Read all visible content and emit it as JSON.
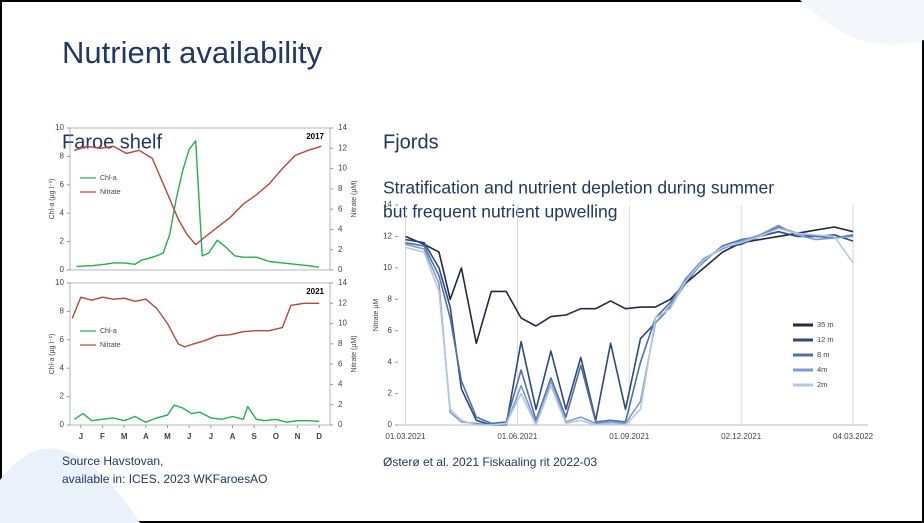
{
  "title": "Nutrient availability",
  "subtitles": [
    "Faroe shelf",
    "Fjords"
  ],
  "fjord_text": [
    "Stratification and nutrient depletion during summer",
    "but frequent nutrient upwelling"
  ],
  "sources": [
    "Source Havstovan,",
    "available in:  ICES. 2023 WKFaroesAO",
    "Østerø et al. 2021 Fiskaaling rit 2022-03"
  ],
  "chart_data": [
    {
      "type": "line",
      "annotation": "2017",
      "y_label": "Chl-a (µg l⁻¹)",
      "y2_label": "Nitrate (µM)",
      "xlim": [
        0,
        12
      ],
      "ylim": [
        0,
        10
      ],
      "yticks": [
        0,
        2,
        4,
        6,
        8,
        10
      ],
      "y2lim": [
        0,
        14
      ],
      "y2ticks": [
        0,
        2,
        4,
        6,
        8,
        10,
        12,
        14
      ],
      "grid": false,
      "series": [
        {
          "name": "Chl-a",
          "color": "#22b14c",
          "axis": "y",
          "x": [
            0.3,
            1,
            1.6,
            2,
            2.5,
            3,
            3.3,
            3.6,
            4,
            4.3,
            4.6,
            4.9,
            5.2,
            5.5,
            5.8,
            6.1,
            6.4,
            6.8,
            7.2,
            7.6,
            8,
            8.6,
            9.2,
            9.8,
            10.4,
            11,
            11.5
          ],
          "values": [
            0.25,
            0.3,
            0.4,
            0.5,
            0.5,
            0.4,
            0.7,
            0.8,
            1,
            1.2,
            2.5,
            5,
            7,
            8.5,
            9.1,
            1,
            1.2,
            2.1,
            1.6,
            1,
            0.9,
            0.9,
            0.6,
            0.5,
            0.4,
            0.3,
            0.2
          ]
        },
        {
          "name": "Nitrate",
          "color": "#b5473a",
          "axis": "y2",
          "x": [
            0.2,
            0.8,
            1.4,
            2,
            2.6,
            3.2,
            3.8,
            4.2,
            4.6,
            5,
            5.4,
            5.8,
            6.2,
            6.8,
            7.4,
            8,
            8.6,
            9.2,
            9.8,
            10.4,
            11,
            11.6
          ],
          "values": [
            11.8,
            12.2,
            12,
            12.2,
            11.5,
            11.8,
            11,
            9,
            7,
            5,
            3.5,
            2.5,
            3.2,
            4.2,
            5.2,
            6.5,
            7.4,
            8.5,
            10,
            11.3,
            11.8,
            12.2
          ]
        }
      ]
    },
    {
      "type": "line",
      "annotation": "2021",
      "y_label": "Chl-a (µg l⁻¹)",
      "y2_label": "Nitrate (µM)",
      "xlim": [
        0,
        12
      ],
      "xticks": [
        {
          "value": 0.5,
          "label": "J"
        },
        {
          "value": 1.5,
          "label": "F"
        },
        {
          "value": 2.5,
          "label": "M"
        },
        {
          "value": 3.5,
          "label": "A"
        },
        {
          "value": 4.5,
          "label": "M"
        },
        {
          "value": 5.5,
          "label": "J"
        },
        {
          "value": 6.5,
          "label": "J"
        },
        {
          "value": 7.5,
          "label": "A"
        },
        {
          "value": 8.5,
          "label": "S"
        },
        {
          "value": 9.5,
          "label": "O"
        },
        {
          "value": 10.5,
          "label": "N"
        },
        {
          "value": 11.5,
          "label": "D"
        }
      ],
      "ylim": [
        0,
        10
      ],
      "yticks": [
        0,
        2,
        4,
        6,
        8,
        10
      ],
      "y2lim": [
        0,
        14
      ],
      "y2ticks": [
        0,
        2,
        4,
        6,
        8,
        10,
        12,
        14
      ],
      "grid": false,
      "series": [
        {
          "name": "Chl-a",
          "color": "#22b14c",
          "axis": "y",
          "x": [
            0.2,
            0.6,
            1,
            1.5,
            2,
            2.5,
            3,
            3.5,
            4,
            4.5,
            4.8,
            5.2,
            5.6,
            6,
            6.5,
            7,
            7.5,
            8,
            8.2,
            8.6,
            9,
            9.5,
            10,
            10.5,
            11,
            11.5
          ],
          "values": [
            0.4,
            0.8,
            0.3,
            0.4,
            0.5,
            0.3,
            0.6,
            0.2,
            0.5,
            0.7,
            1.4,
            1.2,
            0.8,
            0.9,
            0.5,
            0.4,
            0.6,
            0.4,
            1.3,
            0.4,
            0.3,
            0.4,
            0.2,
            0.3,
            0.3,
            0.25
          ]
        },
        {
          "name": "Nitrate",
          "color": "#b5473a",
          "axis": "y2",
          "x": [
            0.1,
            0.5,
            1,
            1.5,
            2,
            2.5,
            3,
            3.5,
            4,
            4.5,
            5,
            5.3,
            5.7,
            6.2,
            6.8,
            7.4,
            8,
            8.6,
            9.2,
            9.8,
            10.2,
            10.8,
            11.5
          ],
          "values": [
            10.5,
            12.6,
            12.3,
            12.6,
            12.4,
            12.5,
            12.2,
            12.4,
            11.5,
            10,
            8,
            7.7,
            8,
            8.3,
            8.8,
            8.9,
            9.2,
            9.3,
            9.3,
            9.6,
            11.8,
            12,
            12
          ]
        }
      ]
    },
    {
      "type": "line",
      "y_label": "Nitrate µM",
      "xlim": [
        -0.2,
        12.4
      ],
      "xticks": [
        {
          "value": 0,
          "label": "01.03.2021"
        },
        {
          "value": 3,
          "label": "01.06.2021"
        },
        {
          "value": 6,
          "label": "01.09.2021"
        },
        {
          "value": 9,
          "label": "02.12.2021"
        },
        {
          "value": 12,
          "label": "04.03.2022"
        }
      ],
      "ylim": [
        0,
        14
      ],
      "yticks": [
        0,
        2,
        4,
        6,
        8,
        10,
        12,
        14
      ],
      "grid": "x",
      "series": [
        {
          "name": "35 m",
          "color": "#1f2a44",
          "x": [
            0,
            0.5,
            0.9,
            1.2,
            1.5,
            1.9,
            2.3,
            2.7,
            3.1,
            3.5,
            3.9,
            4.3,
            4.7,
            5.1,
            5.5,
            5.9,
            6.3,
            6.7,
            7.1,
            7.5,
            8,
            8.5,
            9,
            9.5,
            10,
            10.5,
            11,
            11.5,
            12
          ],
          "values": [
            12,
            11.5,
            11,
            8,
            10,
            5.2,
            8.5,
            8.5,
            6.8,
            6.3,
            6.9,
            7,
            7.4,
            7.4,
            7.9,
            7.4,
            7.5,
            7.5,
            8,
            9,
            10,
            11,
            11.6,
            11.8,
            12,
            12.2,
            12.4,
            12.6,
            12.3
          ]
        },
        {
          "name": "12 m",
          "color": "#2e4a7a",
          "x": [
            0,
            0.5,
            0.9,
            1.2,
            1.5,
            1.9,
            2.3,
            2.7,
            3.1,
            3.5,
            3.9,
            4.3,
            4.7,
            5.1,
            5.5,
            5.9,
            6.3,
            6.7,
            7.1,
            7.5,
            8,
            8.5,
            9,
            9.5,
            10,
            10.5,
            11,
            11.5,
            12
          ],
          "values": [
            11.8,
            11.6,
            10,
            7.5,
            2.3,
            0.3,
            0,
            0,
            5.3,
            1,
            4.7,
            1,
            4.3,
            0.3,
            5.2,
            1,
            5.5,
            6.5,
            7.5,
            9,
            10.5,
            11.3,
            11.5,
            12,
            12.3,
            12,
            12,
            12.1,
            11.7
          ]
        },
        {
          "name": "8 m",
          "color": "#4f6fa8",
          "x": [
            0,
            0.5,
            0.9,
            1.2,
            1.5,
            1.9,
            2.3,
            2.7,
            3.1,
            3.5,
            3.9,
            4.3,
            4.7,
            5.1,
            5.5,
            5.9,
            6.3,
            6.7,
            7.1,
            7.5,
            8,
            8.5,
            9,
            9.5,
            10,
            10.5,
            11,
            11.5,
            12
          ],
          "values": [
            11.6,
            11.4,
            9.5,
            6.8,
            2.8,
            0.5,
            0.1,
            0.2,
            3.5,
            0.3,
            3,
            0.5,
            3.8,
            0.2,
            0.3,
            0.2,
            4,
            6.8,
            7.8,
            9.2,
            10.4,
            11.4,
            11.8,
            12,
            12.6,
            12.2,
            12,
            11.9,
            12.1
          ]
        },
        {
          "name": "4m",
          "color": "#7d9bd0",
          "x": [
            0,
            0.5,
            0.9,
            1.2,
            1.5,
            1.9,
            2.3,
            2.7,
            3.1,
            3.5,
            3.9,
            4.3,
            4.7,
            5.1,
            5.5,
            5.9,
            6.3,
            6.7,
            7.1,
            7.5,
            8,
            8.5,
            9,
            9.5,
            10,
            10.5,
            11,
            11.5,
            12
          ],
          "values": [
            11.5,
            11.2,
            9,
            0.8,
            0.2,
            0.1,
            0,
            0,
            2.5,
            0.1,
            2.8,
            0.2,
            0.5,
            0.1,
            0.2,
            0.1,
            1.5,
            6.5,
            7.6,
            9.3,
            10.6,
            11.2,
            11.7,
            12.1,
            12.7,
            12.1,
            11.8,
            11.9,
            12
          ]
        },
        {
          "name": "2m",
          "color": "#b4c7e7",
          "x": [
            0,
            0.5,
            0.9,
            1.2,
            1.5,
            1.9,
            2.3,
            2.7,
            3.1,
            3.5,
            3.9,
            4.3,
            4.7,
            5.1,
            5.5,
            5.9,
            6.3,
            6.7,
            7.1,
            7.5,
            8,
            8.5,
            9,
            9.5,
            10,
            10.5,
            11,
            11.5,
            12
          ],
          "values": [
            11.3,
            11,
            8.5,
            1,
            0.3,
            0,
            0,
            0.1,
            2,
            0,
            2.5,
            0.1,
            0.3,
            0,
            0.1,
            0,
            1,
            6.8,
            7.4,
            9.1,
            10.5,
            11.3,
            11.6,
            12,
            12.5,
            12.2,
            12.1,
            12,
            10.3
          ]
        }
      ]
    }
  ]
}
